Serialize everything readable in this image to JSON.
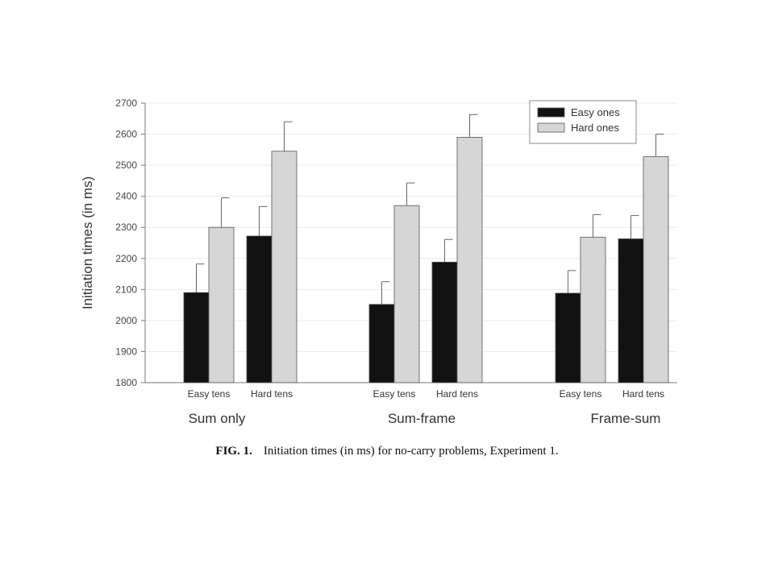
{
  "chart_data": {
    "type": "bar",
    "ylabel": "Initiation times (in ms)",
    "ylim": [
      1800,
      2700
    ],
    "yticks": [
      1800,
      1900,
      2000,
      2100,
      2200,
      2300,
      2400,
      2500,
      2600,
      2700
    ],
    "grid": true,
    "legend_position": "top-right",
    "groups": [
      {
        "label": "Sum only",
        "subcategories": [
          "Easy tens",
          "Hard tens"
        ],
        "easy_ones": {
          "values": [
            2090,
            2272
          ],
          "errors": [
            92,
            95
          ]
        },
        "hard_ones": {
          "values": [
            2300,
            2545
          ],
          "errors": [
            95,
            95
          ]
        }
      },
      {
        "label": "Sum-frame",
        "subcategories": [
          "Easy tens",
          "Hard tens"
        ],
        "easy_ones": {
          "values": [
            2052,
            2188
          ],
          "errors": [
            73,
            73
          ]
        },
        "hard_ones": {
          "values": [
            2370,
            2590
          ],
          "errors": [
            73,
            73
          ]
        }
      },
      {
        "label": "Frame-sum",
        "subcategories": [
          "Easy tens",
          "Hard tens"
        ],
        "easy_ones": {
          "values": [
            2088,
            2263
          ],
          "errors": [
            73,
            75
          ]
        },
        "hard_ones": {
          "values": [
            2268,
            2528
          ],
          "errors": [
            73,
            72
          ]
        }
      }
    ],
    "series": [
      {
        "name": "Easy ones",
        "color": "#111111"
      },
      {
        "name": "Hard ones",
        "color": "#d6d6d6"
      }
    ]
  },
  "caption": {
    "label": "FIG. 1.",
    "text": "Initiation times (in ms) for no-carry problems, Experiment 1."
  }
}
